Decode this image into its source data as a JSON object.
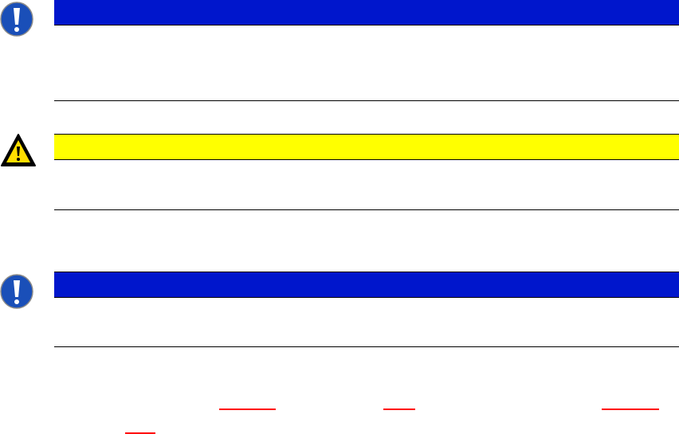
{
  "colors": {
    "notice_bar": "#0016cc",
    "warning_bar": "#ffff00",
    "link_underline": "#ff0000"
  },
  "notices": [
    {
      "type": "notice",
      "icon": "exclamation-circle-icon"
    },
    {
      "type": "warning",
      "icon": "warning-triangle-icon"
    },
    {
      "type": "notice",
      "icon": "exclamation-circle-icon"
    }
  ]
}
